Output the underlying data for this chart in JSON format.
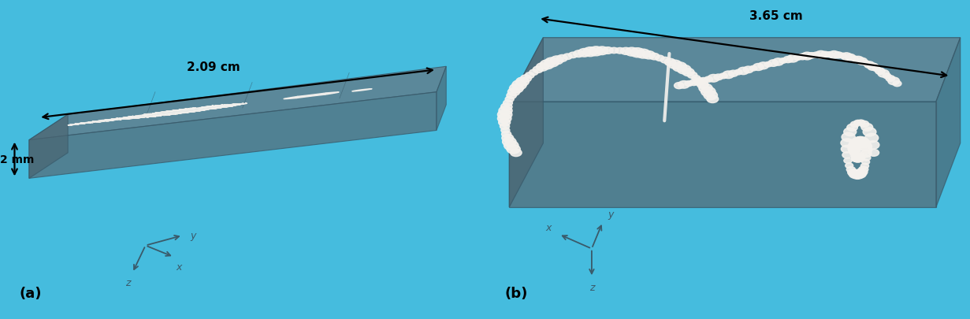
{
  "bg_color": "#45BCDE",
  "box_face_top": "#607D8B",
  "box_face_front": "#546E7A",
  "box_face_right": "#4A6572",
  "box_edge_color": "#37596A",
  "wire_color": "#F5F2EE",
  "arrow_color": "#000000",
  "axis_color": "#3A5A6A",
  "panel_a": {
    "label": "(a)",
    "dim_top": "2.09 cm",
    "dim_left": "2 mm"
  },
  "panel_b": {
    "label": "(b)",
    "dim_top": "3.65 cm"
  },
  "fig_width": 12.31,
  "fig_height": 4.06,
  "dpi": 100
}
